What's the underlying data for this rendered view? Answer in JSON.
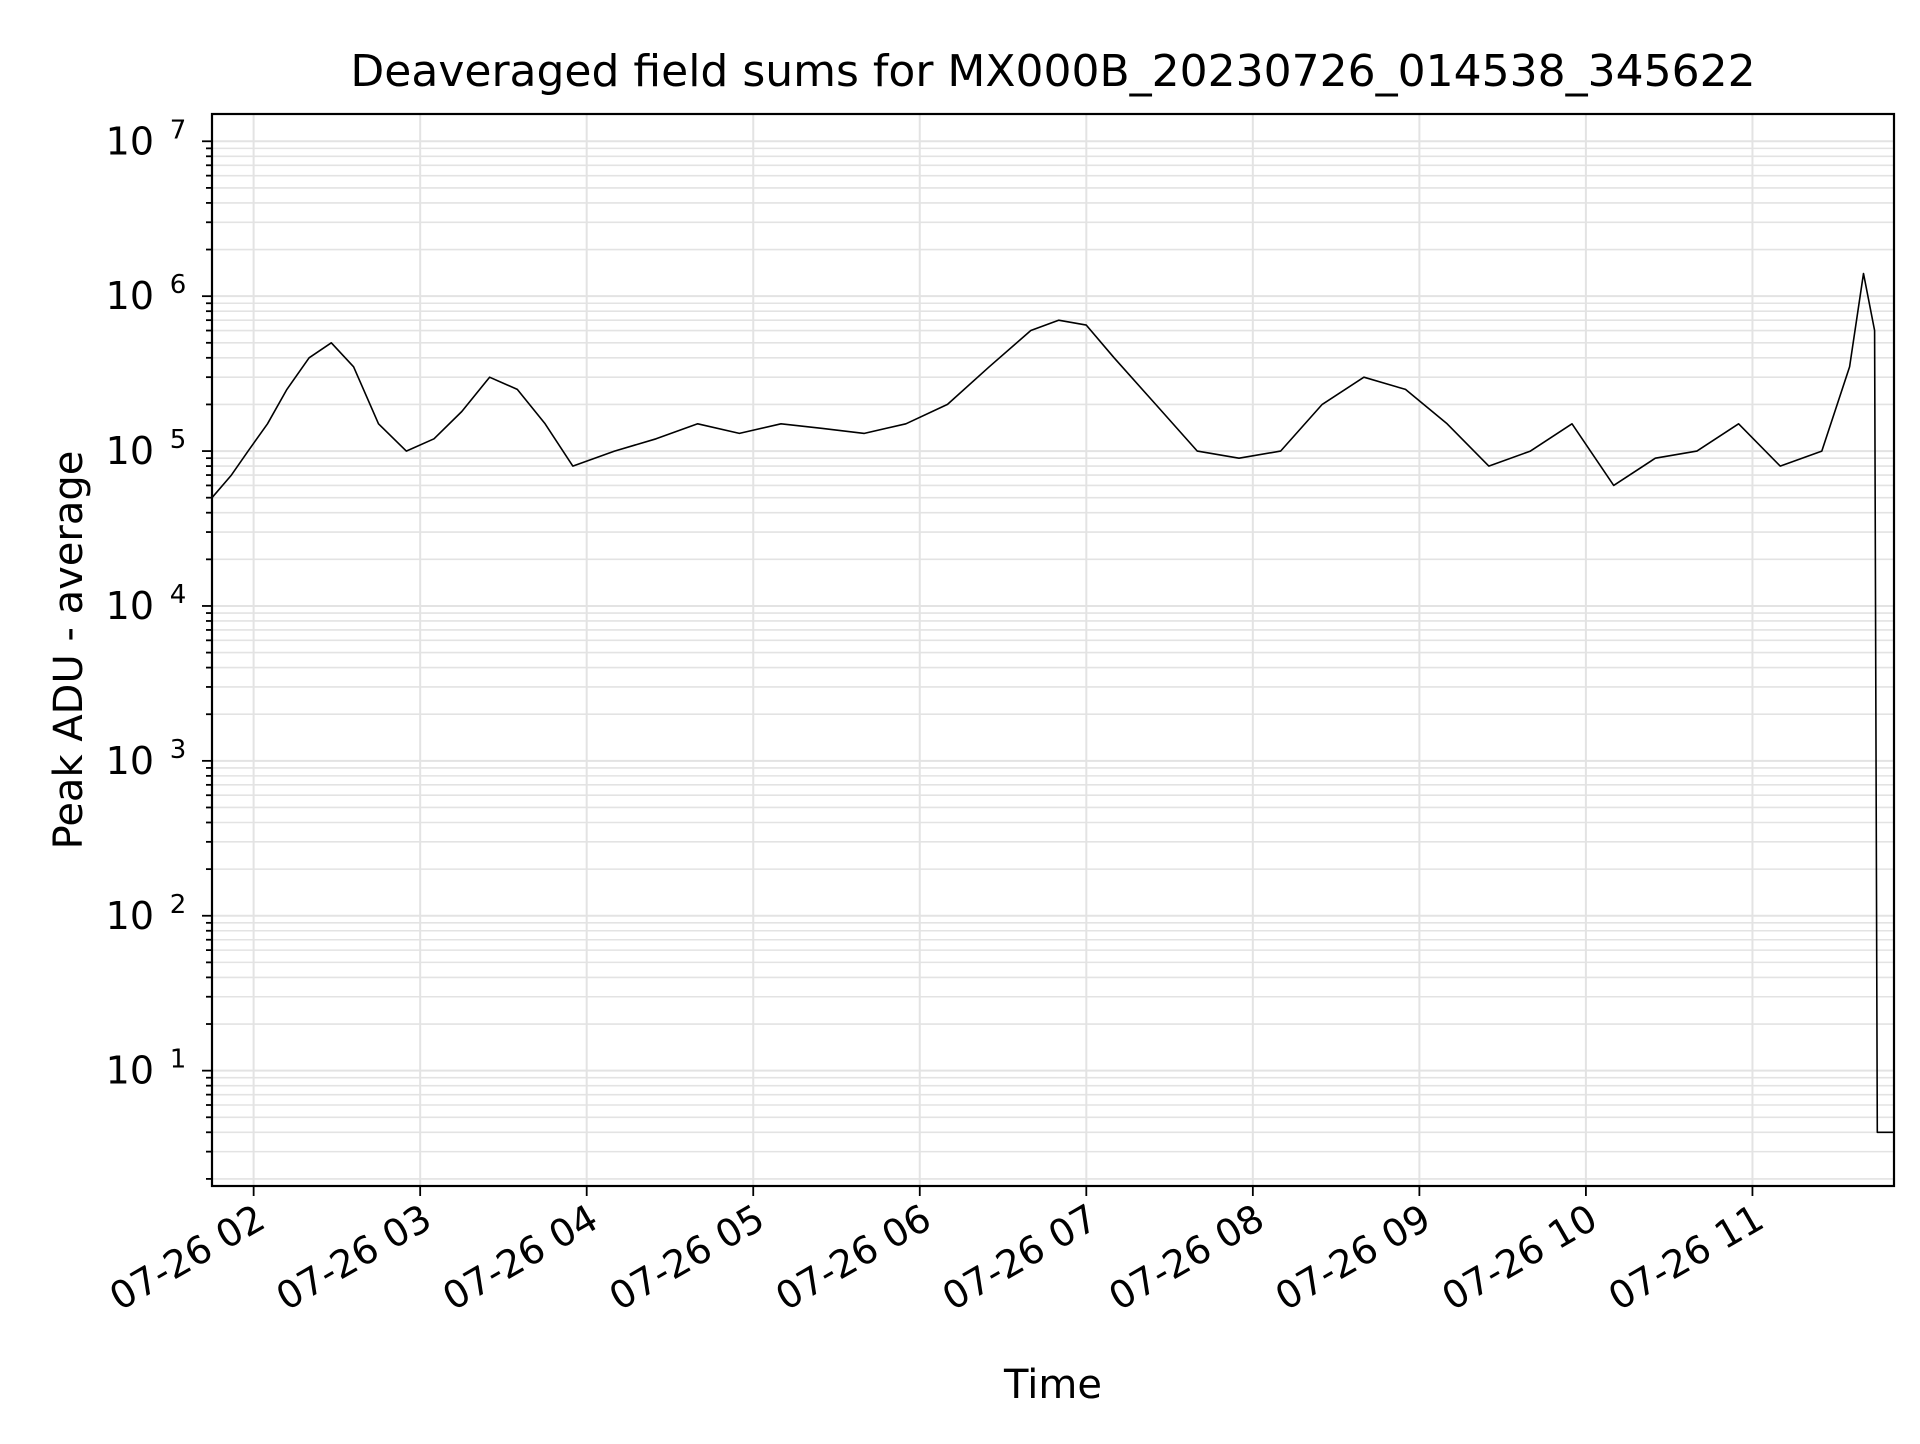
{
  "chart_data": {
    "type": "line",
    "title": "Deaveraged field sums for MX000B_20230726_014538_345622",
    "xlabel": "Time",
    "ylabel": "Peak ADU - average",
    "yscale": "log",
    "ylim": [
      1.8,
      15000000
    ],
    "xlim": [
      "2023-07-26 01:45",
      "2023-07-26 11:51"
    ],
    "grid": true,
    "legend": "none",
    "line_color": "#000000",
    "x_ticks": [
      "07-26 02",
      "07-26 03",
      "07-26 04",
      "07-26 05",
      "07-26 06",
      "07-26 07",
      "07-26 08",
      "07-26 09",
      "07-26 10",
      "07-26 11"
    ],
    "y_ticks": [
      {
        "base": "10",
        "exp": "1",
        "value": 10
      },
      {
        "base": "10",
        "exp": "2",
        "value": 100
      },
      {
        "base": "10",
        "exp": "3",
        "value": 1000
      },
      {
        "base": "10",
        "exp": "4",
        "value": 10000
      },
      {
        "base": "10",
        "exp": "5",
        "value": 100000
      },
      {
        "base": "10",
        "exp": "6",
        "value": 1000000
      },
      {
        "base": "10",
        "exp": "7",
        "value": 10000000
      }
    ],
    "series": [
      {
        "x": [
          "2023-07-26 01:45",
          "2023-07-26 01:52",
          "2023-07-26 01:58",
          "2023-07-26 02:05",
          "2023-07-26 02:12",
          "2023-07-26 02:20",
          "2023-07-26 02:28",
          "2023-07-26 02:36",
          "2023-07-26 02:45",
          "2023-07-26 02:55",
          "2023-07-26 03:05",
          "2023-07-26 03:15",
          "2023-07-26 03:25",
          "2023-07-26 03:35",
          "2023-07-26 03:45",
          "2023-07-26 03:55",
          "2023-07-26 04:10",
          "2023-07-26 04:25",
          "2023-07-26 04:40",
          "2023-07-26 04:55",
          "2023-07-26 05:10",
          "2023-07-26 05:25",
          "2023-07-26 05:40",
          "2023-07-26 05:55",
          "2023-07-26 06:10",
          "2023-07-26 06:25",
          "2023-07-26 06:40",
          "2023-07-26 06:50",
          "2023-07-26 07:00",
          "2023-07-26 07:10",
          "2023-07-26 07:25",
          "2023-07-26 07:40",
          "2023-07-26 07:55",
          "2023-07-26 08:10",
          "2023-07-26 08:25",
          "2023-07-26 08:40",
          "2023-07-26 08:55",
          "2023-07-26 09:10",
          "2023-07-26 09:25",
          "2023-07-26 09:40",
          "2023-07-26 09:55",
          "2023-07-26 10:10",
          "2023-07-26 10:25",
          "2023-07-26 10:40",
          "2023-07-26 10:55",
          "2023-07-26 11:10",
          "2023-07-26 11:25",
          "2023-07-26 11:35",
          "2023-07-26 11:40",
          "2023-07-26 11:44",
          "2023-07-26 11:45",
          "2023-07-26 11:51"
        ],
        "y": [
          50000,
          70000,
          100000,
          150000,
          250000,
          400000,
          500000,
          350000,
          150000,
          100000,
          120000,
          180000,
          300000,
          250000,
          150000,
          80000,
          100000,
          120000,
          150000,
          130000,
          150000,
          140000,
          130000,
          150000,
          200000,
          350000,
          600000,
          700000,
          650000,
          400000,
          200000,
          100000,
          90000,
          100000,
          200000,
          300000,
          250000,
          150000,
          80000,
          100000,
          150000,
          60000,
          90000,
          100000,
          150000,
          80000,
          100000,
          350000,
          1400000,
          600000,
          4,
          4
        ]
      }
    ]
  }
}
